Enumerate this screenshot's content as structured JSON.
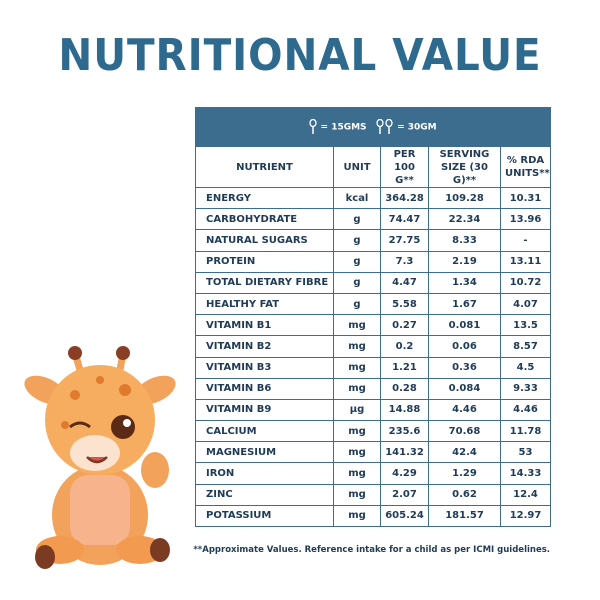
{
  "header": {
    "title": "NUTRITIONAL VALUE"
  },
  "table": {
    "scoop_note": [
      "= 15GMS",
      "= 30GM"
    ],
    "columns": [
      "NUTRIENT",
      "UNIT",
      "PER 100 G**",
      "SERVING SIZE (30 G)**",
      "% RDA UNITS**"
    ],
    "rows": [
      [
        "ENERGY",
        "kcal",
        "364.28",
        "109.28",
        "10.31"
      ],
      [
        "CARBOHYDRATE",
        "g",
        "74.47",
        "22.34",
        "13.96"
      ],
      [
        "NATURAL SUGARS",
        "g",
        "27.75",
        "8.33",
        "-"
      ],
      [
        "PROTEIN",
        "g",
        "7.3",
        "2.19",
        "13.11"
      ],
      [
        "TOTAL DIETARY FIBRE",
        "g",
        "4.47",
        "1.34",
        "10.72"
      ],
      [
        "HEALTHY FAT",
        "g",
        "5.58",
        "1.67",
        "4.07"
      ],
      [
        "VITAMIN B1",
        "mg",
        "0.27",
        "0.081",
        "13.5"
      ],
      [
        "VITAMIN B2",
        "mg",
        "0.2",
        "0.06",
        "8.57"
      ],
      [
        "VITAMIN B3",
        "mg",
        "1.21",
        "0.36",
        "4.5"
      ],
      [
        "VITAMIN B6",
        "mg",
        "0.28",
        "0.084",
        "9.33"
      ],
      [
        "VITAMIN B9",
        "µg",
        "14.88",
        "4.46",
        "4.46"
      ],
      [
        "CALCIUM",
        "mg",
        "235.6",
        "70.68",
        "11.78"
      ],
      [
        "MAGNESIUM",
        "mg",
        "141.32",
        "42.4",
        "53"
      ],
      [
        "IRON",
        "mg",
        "4.29",
        "1.29",
        "14.33"
      ],
      [
        "ZINC",
        "mg",
        "2.07",
        "0.62",
        "12.4"
      ],
      [
        "POTASSIUM",
        "mg",
        "605.24",
        "181.57",
        "12.97"
      ]
    ],
    "footnote": "**Approximate Values. Reference intake for a child as per ICMI guidelines."
  }
}
